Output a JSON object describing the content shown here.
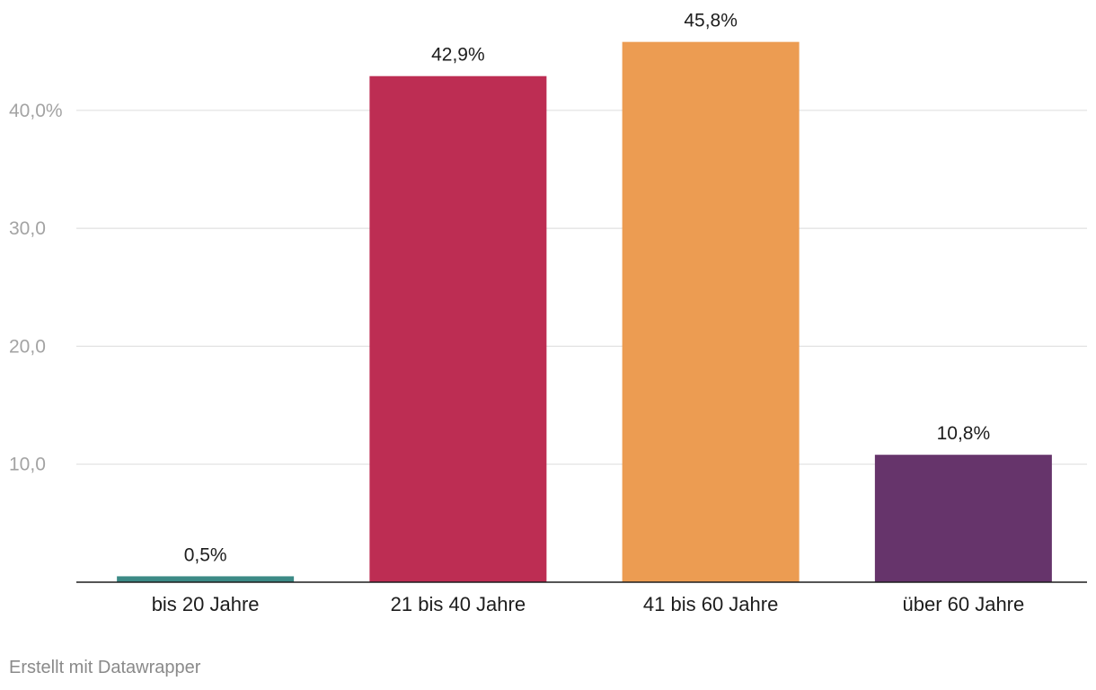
{
  "chart_data": {
    "type": "bar",
    "categories": [
      "bis 20 Jahre",
      "21 bis 40 Jahre",
      "41 bis 60 Jahre",
      "über 60 Jahre"
    ],
    "values": [
      0.5,
      42.9,
      45.8,
      10.8
    ],
    "value_labels": [
      "0,5%",
      "42,9%",
      "45,8%",
      "10,8%"
    ],
    "colors": [
      "#3c8a86",
      "#bd2d53",
      "#ec9c52",
      "#66346b"
    ],
    "title": "",
    "xlabel": "",
    "ylabel": "",
    "ylim": [
      0,
      50
    ],
    "yticks": [
      {
        "value": 10,
        "label": "10,0"
      },
      {
        "value": 20,
        "label": "20,0"
      },
      {
        "value": 30,
        "label": "30,0"
      },
      {
        "value": 40,
        "label": "40,0%"
      }
    ],
    "grid": true
  },
  "footer": {
    "credit": "Erstellt mit Datawrapper"
  }
}
